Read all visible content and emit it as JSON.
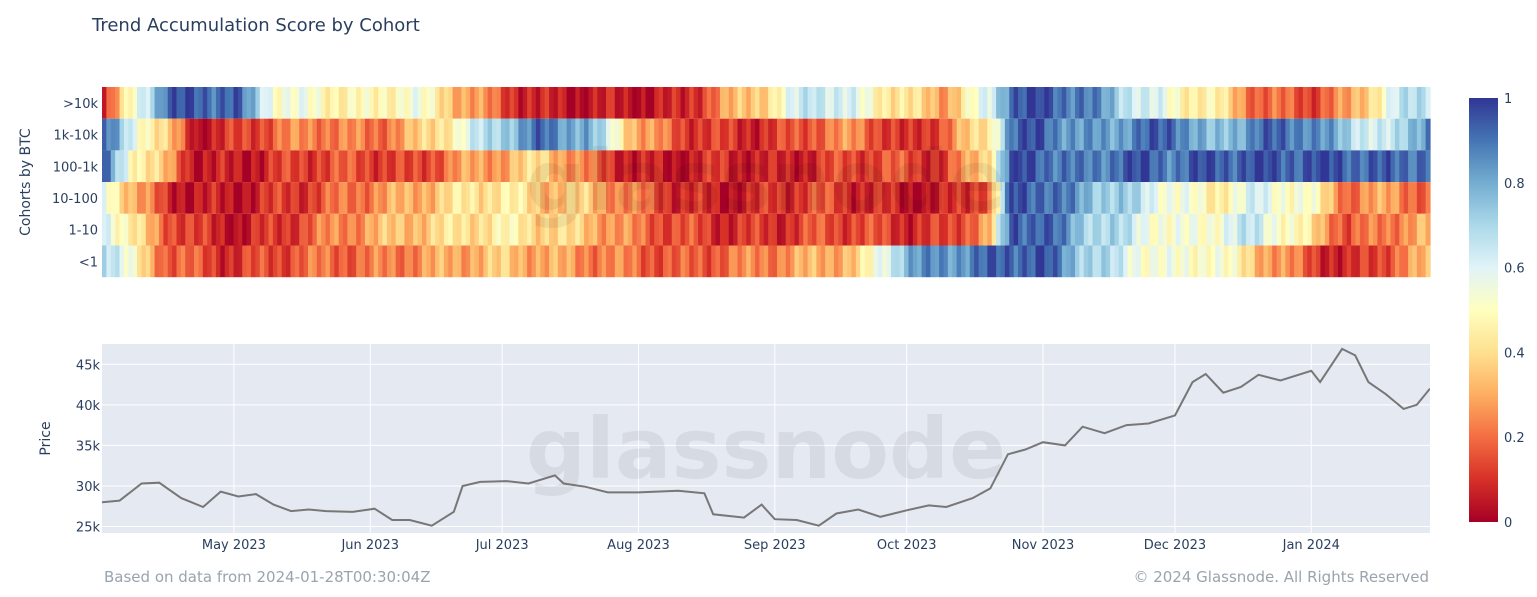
{
  "title": "Trend Accumulation Score by Cohort",
  "footer": {
    "left": "Based on data from 2024-01-28T00:30:04Z",
    "right": "© 2024 Glassnode. All Rights Reserved"
  },
  "watermark": "glassnode",
  "colors": {
    "price_line": "#777777",
    "price_panel_bg": "#e5e9f2",
    "text": "#2a3f5f",
    "colorscale": [
      "#a50026",
      "#d73027",
      "#f46d43",
      "#fdae61",
      "#fee090",
      "#ffffbf",
      "#e0f3f8",
      "#abd9e9",
      "#74add1",
      "#4575b4",
      "#313695"
    ]
  },
  "chart_data": [
    {
      "type": "heatmap",
      "ylabel": "Cohorts by BTC",
      "y_categories": [
        ">10k",
        "1k-10k",
        "100-1k",
        "10-100",
        "1-10",
        "<1"
      ],
      "x_range": [
        "2023-04-01",
        "2024-01-28"
      ],
      "colorbar": {
        "min": 0,
        "max": 1,
        "ticks": [
          "0",
          "0.2",
          "0.4",
          "0.6",
          "0.8",
          "1"
        ]
      },
      "anchors_note": "value(0=red accumulation-low, 1=blue) per cohort at sample dates",
      "anchor_dates": [
        "2023-04-01",
        "2023-04-08",
        "2023-04-15",
        "2023-04-22",
        "2023-05-01",
        "2023-05-10",
        "2023-05-20",
        "2023-06-01",
        "2023-06-10",
        "2023-06-20",
        "2023-07-01",
        "2023-07-10",
        "2023-07-20",
        "2023-08-01",
        "2023-08-10",
        "2023-08-20",
        "2023-09-01",
        "2023-09-10",
        "2023-09-20",
        "2023-10-01",
        "2023-10-10",
        "2023-10-20",
        "2023-10-25",
        "2023-11-01",
        "2023-11-10",
        "2023-11-20",
        "2023-12-01",
        "2023-12-10",
        "2023-12-20",
        "2024-01-01",
        "2024-01-10",
        "2024-01-20",
        "2024-01-28"
      ],
      "values": [
        [
          0.05,
          0.55,
          0.9,
          0.95,
          0.92,
          0.55,
          0.5,
          0.45,
          0.55,
          0.35,
          0.15,
          0.05,
          0.05,
          0.05,
          0.05,
          0.25,
          0.45,
          0.7,
          0.55,
          0.4,
          0.3,
          0.6,
          0.95,
          0.95,
          0.9,
          0.7,
          0.5,
          0.45,
          0.2,
          0.15,
          0.25,
          0.6,
          0.7
        ],
        [
          0.9,
          0.6,
          0.35,
          0.05,
          0.1,
          0.2,
          0.25,
          0.2,
          0.3,
          0.5,
          0.75,
          0.9,
          0.8,
          0.3,
          0.15,
          0.1,
          0.1,
          0.2,
          0.25,
          0.05,
          0.2,
          0.45,
          0.9,
          0.95,
          0.8,
          0.85,
          0.95,
          0.7,
          0.9,
          0.9,
          0.7,
          0.6,
          0.9
        ],
        [
          0.9,
          0.5,
          0.3,
          0.05,
          0.05,
          0.1,
          0.15,
          0.15,
          0.1,
          0.25,
          0.3,
          0.4,
          0.2,
          0.05,
          0.05,
          0.1,
          0.05,
          0.1,
          0.15,
          0.15,
          0.1,
          0.45,
          0.95,
          0.95,
          0.85,
          0.95,
          0.9,
          0.95,
          0.95,
          0.95,
          0.95,
          0.9,
          0.95
        ],
        [
          0.6,
          0.3,
          0.1,
          0.05,
          0.05,
          0.1,
          0.15,
          0.25,
          0.3,
          0.4,
          0.45,
          0.35,
          0.35,
          0.2,
          0.1,
          0.05,
          0.1,
          0.15,
          0.1,
          0.05,
          0.05,
          0.2,
          0.95,
          0.95,
          0.8,
          0.7,
          0.55,
          0.45,
          0.6,
          0.5,
          0.2,
          0.3,
          0.15
        ],
        [
          0.65,
          0.4,
          0.2,
          0.1,
          0.05,
          0.1,
          0.2,
          0.3,
          0.35,
          0.4,
          0.45,
          0.4,
          0.35,
          0.2,
          0.15,
          0.1,
          0.1,
          0.15,
          0.15,
          0.1,
          0.1,
          0.3,
          0.95,
          0.95,
          0.75,
          0.65,
          0.5,
          0.55,
          0.65,
          0.4,
          0.15,
          0.25,
          0.3
        ],
        [
          0.75,
          0.45,
          0.2,
          0.15,
          0.1,
          0.15,
          0.2,
          0.2,
          0.25,
          0.3,
          0.35,
          0.3,
          0.25,
          0.2,
          0.15,
          0.2,
          0.25,
          0.3,
          0.35,
          0.8,
          0.85,
          0.9,
          0.95,
          0.95,
          0.75,
          0.6,
          0.5,
          0.55,
          0.35,
          0.15,
          0.05,
          0.2,
          0.3
        ]
      ]
    },
    {
      "type": "line",
      "ylabel": "Price",
      "x_ticks": [
        "May 2023",
        "Jun 2023",
        "Jul 2023",
        "Aug 2023",
        "Sep 2023",
        "Oct 2023",
        "Nov 2023",
        "Dec 2023",
        "Jan 2024"
      ],
      "y_ticks": [
        "25k",
        "30k",
        "35k",
        "40k",
        "45k"
      ],
      "ylim": [
        24200,
        47500
      ],
      "grid": true,
      "series": [
        {
          "x": [
            "2023-04-01",
            "2023-04-05",
            "2023-04-10",
            "2023-04-14",
            "2023-04-19",
            "2023-04-24",
            "2023-04-28",
            "2023-05-02",
            "2023-05-06",
            "2023-05-10",
            "2023-05-14",
            "2023-05-18",
            "2023-05-22",
            "2023-05-28",
            "2023-06-02",
            "2023-06-06",
            "2023-06-10",
            "2023-06-15",
            "2023-06-20",
            "2023-06-22",
            "2023-06-26",
            "2023-07-02",
            "2023-07-07",
            "2023-07-13",
            "2023-07-15",
            "2023-07-20",
            "2023-07-25",
            "2023-08-01",
            "2023-08-10",
            "2023-08-16",
            "2023-08-18",
            "2023-08-25",
            "2023-08-29",
            "2023-09-01",
            "2023-09-06",
            "2023-09-11",
            "2023-09-15",
            "2023-09-20",
            "2023-09-25",
            "2023-10-01",
            "2023-10-06",
            "2023-10-10",
            "2023-10-16",
            "2023-10-20",
            "2023-10-24",
            "2023-10-28",
            "2023-11-01",
            "2023-11-06",
            "2023-11-10",
            "2023-11-15",
            "2023-11-20",
            "2023-11-25",
            "2023-12-01",
            "2023-12-05",
            "2023-12-08",
            "2023-12-12",
            "2023-12-16",
            "2023-12-20",
            "2023-12-25",
            "2024-01-01",
            "2024-01-03",
            "2024-01-08",
            "2024-01-11",
            "2024-01-14",
            "2024-01-18",
            "2024-01-22",
            "2024-01-25",
            "2024-01-28"
          ],
          "y": [
            28000,
            28200,
            30300,
            30400,
            28500,
            27400,
            29300,
            28700,
            29000,
            27700,
            26900,
            27100,
            26900,
            26800,
            27200,
            25800,
            25800,
            25100,
            26800,
            30000,
            30500,
            30600,
            30300,
            31300,
            30300,
            29900,
            29200,
            29200,
            29400,
            29100,
            26500,
            26100,
            27700,
            25900,
            25800,
            25100,
            26600,
            27100,
            26200,
            27000,
            27600,
            27400,
            28500,
            29700,
            33900,
            34500,
            35400,
            35000,
            37300,
            36500,
            37500,
            37700,
            38700,
            42800,
            43800,
            41500,
            42200,
            43700,
            43000,
            44200,
            42800,
            46900,
            46100,
            42800,
            41300,
            39500,
            40000,
            42000
          ]
        }
      ]
    }
  ]
}
